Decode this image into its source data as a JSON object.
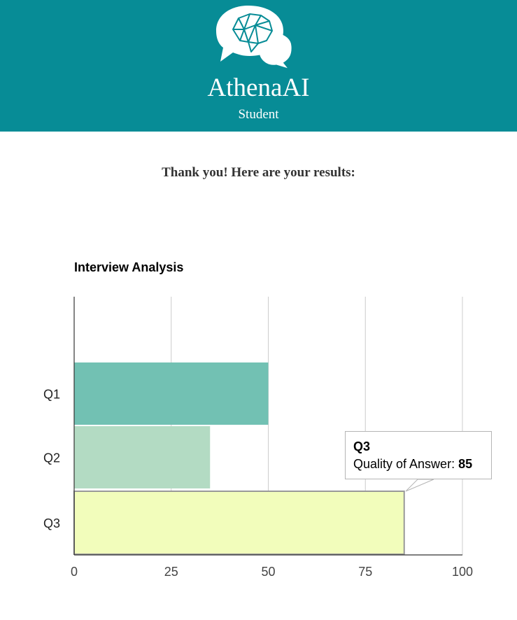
{
  "header": {
    "brand": "AthenaAI",
    "role": "Student",
    "logo_icon": "brain-chat-bubble-icon",
    "background": "#078c96"
  },
  "main": {
    "message": "Thank you! Here are your results:"
  },
  "chart_data": {
    "type": "bar",
    "orientation": "horizontal",
    "title": "Interview Analysis",
    "categories": [
      "Q1",
      "Q2",
      "Q3"
    ],
    "series": [
      {
        "name": "Quality of Answer",
        "values": [
          50,
          35,
          85
        ]
      }
    ],
    "colors": [
      "#72c1b3",
      "#b3dbc3",
      "#f2fdbb"
    ],
    "xlim": [
      0,
      100
    ],
    "xticks": [
      "0",
      "25",
      "50",
      "75",
      "100"
    ],
    "grid": true,
    "tooltip": {
      "category": "Q3",
      "label": "Quality of Answer:",
      "value": "85"
    }
  }
}
